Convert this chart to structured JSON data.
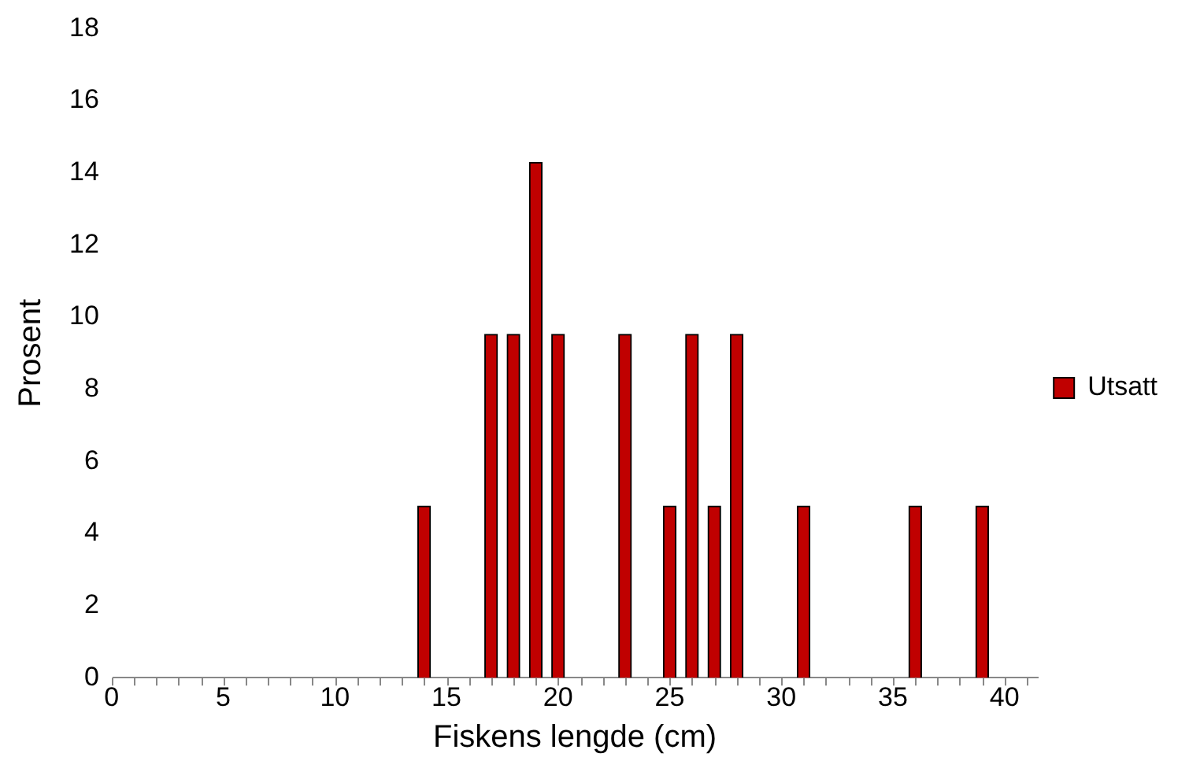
{
  "chart_data": {
    "type": "bar",
    "xlabel": "Fiskens lengde (cm)",
    "ylabel": "Prosent",
    "x": [
      14,
      17,
      18,
      19,
      20,
      23,
      25,
      26,
      27,
      28,
      31,
      36,
      39
    ],
    "series": [
      {
        "name": "Utsatt",
        "color": "#c00000",
        "values": [
          4.76,
          9.52,
          9.52,
          14.29,
          9.52,
          9.52,
          4.76,
          9.52,
          4.76,
          9.52,
          4.76,
          4.76,
          4.76
        ]
      }
    ],
    "xlim": [
      0,
      41.5
    ],
    "xticks": [
      0,
      {
        "value": 1,
        "label": null
      },
      {
        "value": 2,
        "label": null
      },
      {
        "value": 3,
        "label": null
      },
      {
        "value": 4,
        "label": null
      },
      5,
      {
        "value": 6,
        "label": null
      },
      {
        "value": 7,
        "label": null
      },
      {
        "value": 8,
        "label": null
      },
      {
        "value": 9,
        "label": null
      },
      10,
      {
        "value": 11,
        "label": null
      },
      {
        "value": 12,
        "label": null
      },
      {
        "value": 13,
        "label": null
      },
      {
        "value": 14,
        "label": null
      },
      15,
      {
        "value": 16,
        "label": null
      },
      {
        "value": 17,
        "label": null
      },
      {
        "value": 18,
        "label": null
      },
      {
        "value": 19,
        "label": null
      },
      20,
      {
        "value": 21,
        "label": null
      },
      {
        "value": 22,
        "label": null
      },
      {
        "value": 23,
        "label": null
      },
      {
        "value": 24,
        "label": null
      },
      25,
      {
        "value": 26,
        "label": null
      },
      {
        "value": 27,
        "label": null
      },
      {
        "value": 28,
        "label": null
      },
      {
        "value": 29,
        "label": null
      },
      30,
      {
        "value": 31,
        "label": null
      },
      {
        "value": 32,
        "label": null
      },
      {
        "value": 33,
        "label": null
      },
      {
        "value": 34,
        "label": null
      },
      35,
      {
        "value": 36,
        "label": null
      },
      {
        "value": 37,
        "label": null
      },
      {
        "value": 38,
        "label": null
      },
      {
        "value": 39,
        "label": null
      },
      40,
      {
        "value": 41,
        "label": null
      }
    ],
    "ylim": [
      0,
      18
    ],
    "yticks": [
      0,
      2,
      4,
      6,
      8,
      10,
      12,
      14,
      16,
      18
    ],
    "grid": false,
    "legend": "right"
  }
}
